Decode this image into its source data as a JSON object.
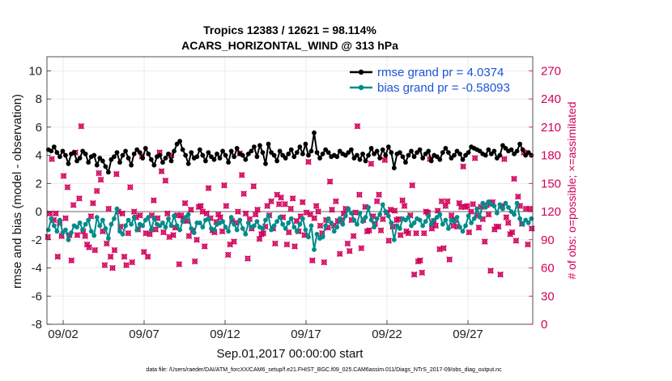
{
  "chart_data": {
    "type": "line",
    "title": "Tropics 12383 / 12621 = 98.114%",
    "subtitle": "ACARS_HORIZONTAL_WIND @ 313 hPa",
    "xlabel": "Sep.01,2017 00:00:00 start",
    "ylabel": "rmse and bias (model - observation)",
    "y2label": "# of obs: o=possible; ×=assimilated",
    "x_tick_labels": [
      "09/02",
      "09/07",
      "09/12",
      "09/17",
      "09/22",
      "09/27"
    ],
    "x_tick_days": [
      2,
      7,
      12,
      17,
      22,
      27
    ],
    "xlim_days": [
      1,
      31
    ],
    "ylim": [
      -8,
      11
    ],
    "y_ticks": [
      -8,
      -6,
      -4,
      -2,
      0,
      2,
      4,
      6,
      8,
      10
    ],
    "y2lim": [
      0,
      285
    ],
    "y2_ticks": [
      0,
      30,
      60,
      90,
      120,
      150,
      180,
      210,
      240,
      270
    ],
    "grid": true,
    "legend": "top-right",
    "footer": "data file: /Users/raeder/DAI/ATM_forcXX/CAM6_setup/f.e21.FHIST_BGC.f09_025.CAM6assim.011/Diags_NTrS_2017-09/obs_diag_output.nc",
    "colors": {
      "rmse": "#000000",
      "bias": "#008b8b",
      "obs": "#d1005a",
      "zero": "#b4b4b4",
      "legend_text": "#1a55d6"
    },
    "series": [
      {
        "name": "rmse grand pr = 4.0374",
        "values": [
          4.4,
          4.3,
          4.6,
          4.2,
          3.9,
          4.3,
          4.0,
          3.4,
          4.1,
          4.2,
          3.6,
          3.8,
          4.3,
          4.1,
          3.5,
          3.9,
          4.0,
          3.3,
          3.8,
          3.6,
          3.2,
          2.8,
          3.7,
          3.9,
          4.2,
          3.5,
          4.0,
          4.3,
          3.8,
          3.3,
          4.1,
          4.4,
          4.2,
          3.8,
          4.5,
          4.1,
          3.7,
          3.3,
          3.9,
          4.0,
          3.5,
          3.8,
          4.1,
          3.6,
          4.3,
          4.8,
          5.0,
          4.4,
          4.0,
          3.4,
          4.2,
          3.8,
          3.9,
          4.4,
          4.0,
          3.6,
          4.2,
          3.9,
          3.7,
          4.1,
          3.8,
          4.3,
          4.0,
          3.5,
          4.3,
          3.9,
          4.5,
          4.1,
          4.0,
          3.7,
          4.1,
          4.3,
          4.6,
          3.9,
          4.7,
          4.2,
          3.4,
          4.8,
          4.2,
          4.0,
          3.6,
          4.3,
          4.0,
          3.8,
          4.1,
          4.4,
          3.9,
          4.2,
          4.6,
          4.1,
          4.8,
          4.0,
          4.3,
          5.6,
          4.2,
          3.8,
          4.1,
          4.4,
          4.2,
          3.9,
          4.0,
          3.9,
          4.3,
          4.1,
          4.0,
          4.2,
          4.4,
          3.8,
          4.0,
          3.7,
          4.1,
          3.6,
          4.0,
          4.5,
          4.1,
          4.3,
          3.8,
          4.4,
          4.0,
          4.6,
          4.2,
          3.1,
          4.1,
          4.2,
          3.9,
          3.5,
          4.0,
          4.3,
          3.9,
          4.2,
          4.4,
          3.8,
          4.1,
          4.3,
          3.6,
          4.0,
          3.9,
          3.7,
          4.2,
          4.5,
          4.2,
          3.8,
          4.0,
          4.3,
          4.1,
          3.7,
          4.0,
          4.2,
          4.6,
          4.5,
          4.4,
          4.3,
          4.1,
          4.0,
          4.4,
          4.1,
          4.3,
          3.8,
          4.0,
          4.7,
          4.5,
          4.3,
          4.4,
          4.1,
          4.3,
          4.8,
          4.4,
          4.0,
          4.2,
          4.0
        ]
      },
      {
        "name": "bias grand pr = -0.58093",
        "values": [
          -1.3,
          -0.5,
          -1.0,
          -1.4,
          -0.6,
          -1.5,
          -1.3,
          -2.0,
          -1.5,
          -1.0,
          -1.1,
          -0.8,
          -1.3,
          -0.9,
          -0.6,
          -1.4,
          -1.7,
          -0.4,
          -1.0,
          -0.6,
          -1.2,
          -1.9,
          -0.9,
          -0.5,
          0.2,
          -1.4,
          -1.6,
          -1.0,
          -0.6,
          -0.9,
          -0.4,
          -1.3,
          -0.9,
          -1.0,
          -0.6,
          -0.4,
          -1.3,
          -0.5,
          -0.9,
          -1.0,
          -0.8,
          -1.1,
          -0.5,
          -1.0,
          -0.3,
          -1.0,
          -1.3,
          -0.7,
          -0.4,
          -0.2,
          -1.2,
          -1.5,
          -0.8,
          -0.8,
          -1.1,
          -0.6,
          -0.5,
          -1.2,
          -1.3,
          -0.9,
          -0.8,
          -0.7,
          -1.1,
          -1.4,
          -0.4,
          -0.9,
          -1.3,
          -0.6,
          -1.2,
          -1.6,
          -0.8,
          -1.1,
          -1.0,
          -0.7,
          -1.1,
          -1.2,
          -0.6,
          -0.3,
          -1.3,
          -1.0,
          -0.7,
          -0.4,
          -0.9,
          -1.2,
          -0.8,
          -0.5,
          -1.1,
          -1.4,
          -0.9,
          -0.5,
          -1.3,
          -1.8,
          -1.0,
          -2.7,
          -1.6,
          -1.9,
          -1.8,
          -1.0,
          -0.5,
          -0.8,
          -1.4,
          -1.1,
          -0.5,
          -0.9,
          -0.3,
          0.2,
          -0.1,
          -0.6,
          -0.9,
          -0.1,
          -0.7,
          -0.4,
          0.3,
          -0.6,
          -1.1,
          -0.5,
          -0.2,
          0.5,
          0.0,
          -0.3,
          -0.8,
          -2.0,
          -1.0,
          -1.2,
          -0.5,
          -0.6,
          -0.4,
          -1.0,
          -0.8,
          -0.5,
          -0.6,
          -1.0,
          -0.7,
          -0.3,
          -0.9,
          -0.6,
          -0.4,
          -0.2,
          -0.9,
          -0.6,
          -1.2,
          -0.6,
          -0.7,
          -0.4,
          -1.1,
          -1.4,
          -1.0,
          -0.3,
          -0.8,
          -0.5,
          0.2,
          -0.4,
          0.6,
          0.3,
          0.7,
          0.5,
          0.4,
          -0.1,
          0.5,
          0.2,
          0.6,
          0.3,
          0.0,
          -0.2,
          0.6,
          -0.5,
          -0.9,
          -0.6,
          -0.8,
          -0.5
        ]
      }
    ],
    "obs_counts": {
      "possible": [
        93,
        118,
        176,
        111,
        118,
        72,
        108,
        94,
        158,
        113,
        146,
        95,
        68,
        127,
        183,
        95,
        134,
        211,
        99,
        94,
        85,
        82,
        115,
        129,
        79,
        142,
        161,
        154,
        99,
        63,
        86,
        123,
        72,
        60,
        79,
        160,
        120,
        104,
        118,
        72,
        63,
        97,
        146,
        66,
        120,
        114,
        101,
        116,
        179,
        77,
        97,
        72,
        96,
        116,
        132,
        101,
        113,
        183,
        163,
        98,
        153,
        118,
        93,
        180,
        95,
        103,
        116,
        64,
        116,
        112,
        129,
        110,
        94,
        122,
        100,
        67,
        90,
        125,
        126,
        120,
        83,
        118,
        145,
        113,
        100,
        98,
        109,
        117,
        114,
        99,
        148,
        126,
        74,
        85,
        110,
        88,
        108,
        120,
        182,
        159,
        139,
        118,
        70,
        112,
        102,
        147,
        117,
        122,
        91,
        96,
        97,
        104,
        126,
        116,
        131,
        102,
        86,
        138,
        128,
        135,
        114,
        128,
        85,
        98,
        123,
        134,
        83,
        110,
        99,
        115,
        130,
        95,
        119,
        173,
        117,
        68,
        113,
        126,
        120,
        105,
        97,
        66,
        111,
        103,
        152,
        122,
        105,
        131,
        110,
        75,
        111,
        118,
        123,
        86,
        78,
        111,
        94,
        119,
        211,
        138,
        81,
        111,
        125,
        99,
        100,
        171,
        115,
        107,
        131,
        138,
        100,
        112,
        175,
        119,
        89,
        122,
        104,
        121,
        111,
        112,
        95,
        132,
        126,
        99,
        97,
        116,
        148,
        53,
        97,
        67,
        68,
        55,
        97,
        120,
        119,
        176,
        102,
        110,
        105,
        121,
        80,
        131,
        81,
        126,
        131,
        69,
        116,
        105,
        111,
        104,
        129,
        125,
        168,
        125,
        126,
        98,
        120,
        128,
        177,
        116,
        103,
        125,
        112,
        88,
        127,
        117,
        57,
        130,
        101,
        104,
        104,
        53,
        126,
        176,
        114,
        108,
        96,
        98,
        155,
        89,
        136,
        126,
        107,
        183,
        123,
        85,
        123,
        102
      ],
      "assimilated": [
        93,
        118,
        176,
        111,
        118,
        72,
        108,
        94,
        158,
        113,
        146,
        95,
        68,
        127,
        183,
        95,
        134,
        211,
        99,
        94,
        85,
        82,
        115,
        129,
        79,
        142,
        161,
        154,
        99,
        63,
        86,
        123,
        72,
        60,
        79,
        160,
        120,
        104,
        118,
        72,
        63,
        97,
        146,
        66,
        120,
        114,
        101,
        116,
        179,
        77,
        97,
        72,
        96,
        116,
        132,
        101,
        113,
        183,
        163,
        98,
        153,
        118,
        93,
        180,
        95,
        103,
        116,
        64,
        116,
        112,
        129,
        110,
        94,
        122,
        100,
        67,
        90,
        125,
        126,
        120,
        83,
        118,
        145,
        113,
        100,
        98,
        109,
        117,
        114,
        99,
        148,
        126,
        74,
        85,
        110,
        88,
        108,
        120,
        182,
        159,
        139,
        118,
        70,
        112,
        102,
        147,
        117,
        122,
        91,
        96,
        97,
        104,
        126,
        116,
        131,
        102,
        86,
        138,
        128,
        135,
        114,
        128,
        85,
        98,
        123,
        134,
        83,
        110,
        99,
        115,
        130,
        95,
        119,
        173,
        117,
        68,
        113,
        126,
        120,
        105,
        97,
        66,
        111,
        103,
        152,
        122,
        105,
        131,
        110,
        75,
        111,
        118,
        123,
        86,
        78,
        111,
        94,
        119,
        211,
        138,
        81,
        111,
        125,
        99,
        100,
        171,
        115,
        107,
        131,
        138,
        100,
        112,
        175,
        119,
        89,
        122,
        104,
        121,
        111,
        112,
        95,
        132,
        126,
        99,
        97,
        116,
        148,
        53,
        97,
        67,
        68,
        55,
        97,
        120,
        119,
        176,
        102,
        110,
        105,
        121,
        80,
        131,
        81,
        126,
        131,
        69,
        116,
        105,
        111,
        104,
        129,
        125,
        168,
        125,
        126,
        98,
        120,
        128,
        177,
        116,
        103,
        125,
        112,
        88,
        127,
        117,
        57,
        130,
        101,
        104,
        104,
        53,
        126,
        176,
        114,
        108,
        96,
        98,
        155,
        89,
        136,
        126,
        107,
        183,
        123,
        85,
        123,
        102
      ]
    }
  }
}
